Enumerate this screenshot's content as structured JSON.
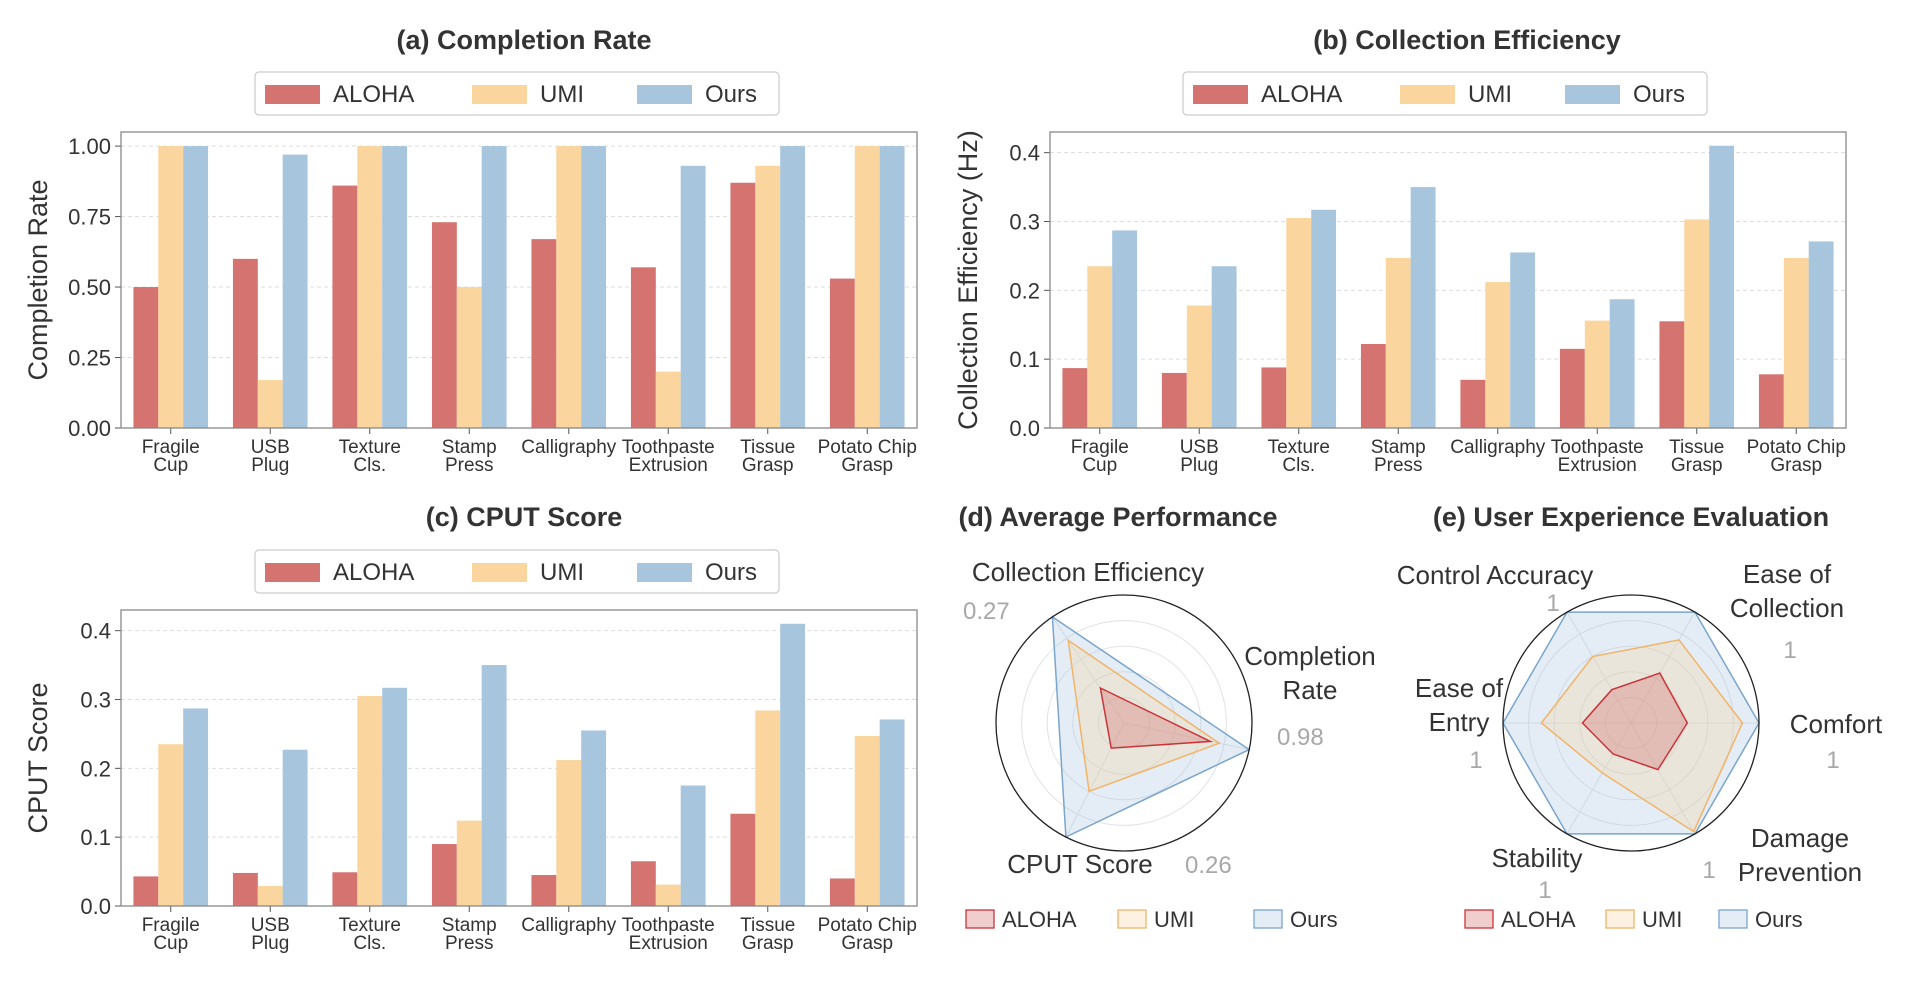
{
  "colors": {
    "ALOHA": "#d4736f",
    "UMI": "#fad59d",
    "Ours": "#a7c5dd",
    "ALOHA_line": "#c9343b",
    "UMI_line": "#f0b46a",
    "Ours_line": "#7aa5cc",
    "grid": "#dddddd",
    "frame": "#888888"
  },
  "chart_data": [
    {
      "id": "a",
      "type": "bar",
      "title": "(a) Completion Rate",
      "ylabel": "Completion Rate",
      "ylim": [
        0,
        1.05
      ],
      "yticks": [
        "0.00",
        "0.25",
        "0.50",
        "0.75",
        "1.00"
      ],
      "legend": "top-center",
      "grid": true,
      "categories": [
        [
          "Fragile",
          "Cup"
        ],
        [
          "USB",
          "Plug"
        ],
        [
          "Texture",
          "Cls."
        ],
        [
          "Stamp",
          "Press"
        ],
        [
          "Calligraphy"
        ],
        [
          "Toothpaste",
          "Extrusion"
        ],
        [
          "Tissue",
          "Grasp"
        ],
        [
          "Potato Chip",
          "Grasp"
        ]
      ],
      "series": [
        {
          "name": "ALOHA",
          "values": [
            0.5,
            0.6,
            0.86,
            0.73,
            0.67,
            0.57,
            0.87,
            0.53
          ]
        },
        {
          "name": "UMI",
          "values": [
            1.0,
            0.17,
            1.0,
            0.5,
            1.0,
            0.2,
            0.93,
            1.0
          ]
        },
        {
          "name": "Ours",
          "values": [
            1.0,
            0.97,
            1.0,
            1.0,
            1.0,
            0.93,
            1.0,
            1.0
          ]
        }
      ]
    },
    {
      "id": "b",
      "type": "bar",
      "title": "(b) Collection Efficiency",
      "ylabel": "Collection Efficiency (Hz)",
      "ylim": [
        0,
        0.43
      ],
      "yticks": [
        "0.0",
        "0.1",
        "0.2",
        "0.3",
        "0.4"
      ],
      "legend": "top-center",
      "grid": true,
      "categories": [
        [
          "Fragile",
          "Cup"
        ],
        [
          "USB",
          "Plug"
        ],
        [
          "Texture",
          "Cls."
        ],
        [
          "Stamp",
          "Press"
        ],
        [
          "Calligraphy"
        ],
        [
          "Toothpaste",
          "Extrusion"
        ],
        [
          "Tissue",
          "Grasp"
        ],
        [
          "Potato Chip",
          "Grasp"
        ]
      ],
      "series": [
        {
          "name": "ALOHA",
          "values": [
            0.087,
            0.08,
            0.088,
            0.122,
            0.07,
            0.115,
            0.155,
            0.078
          ]
        },
        {
          "name": "UMI",
          "values": [
            0.235,
            0.178,
            0.305,
            0.247,
            0.212,
            0.156,
            0.303,
            0.247
          ]
        },
        {
          "name": "Ours",
          "values": [
            0.287,
            0.235,
            0.317,
            0.35,
            0.255,
            0.187,
            0.41,
            0.271
          ]
        }
      ]
    },
    {
      "id": "c",
      "type": "bar",
      "title": "(c) CPUT Score",
      "ylabel": "CPUT Score",
      "ylim": [
        0,
        0.43
      ],
      "yticks": [
        "0.0",
        "0.1",
        "0.2",
        "0.3",
        "0.4"
      ],
      "legend": "top-center",
      "grid": true,
      "categories": [
        [
          "Fragile",
          "Cup"
        ],
        [
          "USB",
          "Plug"
        ],
        [
          "Texture",
          "Cls."
        ],
        [
          "Stamp",
          "Press"
        ],
        [
          "Calligraphy"
        ],
        [
          "Toothpaste",
          "Extrusion"
        ],
        [
          "Tissue",
          "Grasp"
        ],
        [
          "Potato Chip",
          "Grasp"
        ]
      ],
      "series": [
        {
          "name": "ALOHA",
          "values": [
            0.043,
            0.048,
            0.049,
            0.09,
            0.045,
            0.065,
            0.134,
            0.04
          ]
        },
        {
          "name": "UMI",
          "values": [
            0.235,
            0.029,
            0.305,
            0.124,
            0.212,
            0.031,
            0.284,
            0.247
          ]
        },
        {
          "name": "Ours",
          "values": [
            0.287,
            0.227,
            0.317,
            0.35,
            0.255,
            0.175,
            0.41,
            0.271
          ]
        }
      ]
    },
    {
      "id": "d",
      "type": "radar",
      "title": "(d) Average Performance",
      "axes": [
        {
          "label": [
            "Collection Efficiency"
          ],
          "max_label": "0.27"
        },
        {
          "label": [
            "Completion",
            "Rate"
          ],
          "max_label": "0.98"
        },
        {
          "label": [
            "CPUT Score"
          ],
          "max_label": "0.26"
        }
      ],
      "legend": "bottom",
      "series": [
        {
          "name": "ALOHA",
          "values": [
            0.33,
            0.69,
            0.22
          ]
        },
        {
          "name": "UMI",
          "values": [
            0.78,
            0.76,
            0.6
          ]
        },
        {
          "name": "Ours",
          "values": [
            1.0,
            1.0,
            1.0
          ]
        }
      ]
    },
    {
      "id": "e",
      "type": "radar",
      "title": "(e) User Experience Evaluation",
      "axes": [
        {
          "label": [
            "Ease of",
            "Collection"
          ],
          "max_label": "1"
        },
        {
          "label": [
            "Comfort"
          ],
          "max_label": "1"
        },
        {
          "label": [
            "Damage",
            "Prevention"
          ],
          "max_label": "1"
        },
        {
          "label": [
            "Stability"
          ],
          "max_label": "1"
        },
        {
          "label": [
            "Ease of",
            "Entry"
          ],
          "max_label": "1"
        },
        {
          "label": [
            "Control Accuracy"
          ],
          "max_label": "1"
        }
      ],
      "legend": "bottom",
      "series": [
        {
          "name": "ALOHA",
          "values": [
            0.45,
            0.44,
            0.42,
            0.28,
            0.38,
            0.3
          ]
        },
        {
          "name": "UMI",
          "values": [
            0.75,
            0.87,
            0.98,
            0.45,
            0.7,
            0.6
          ]
        },
        {
          "name": "Ours",
          "values": [
            1.0,
            1.0,
            1.0,
            1.0,
            1.0,
            1.0
          ]
        }
      ]
    }
  ]
}
